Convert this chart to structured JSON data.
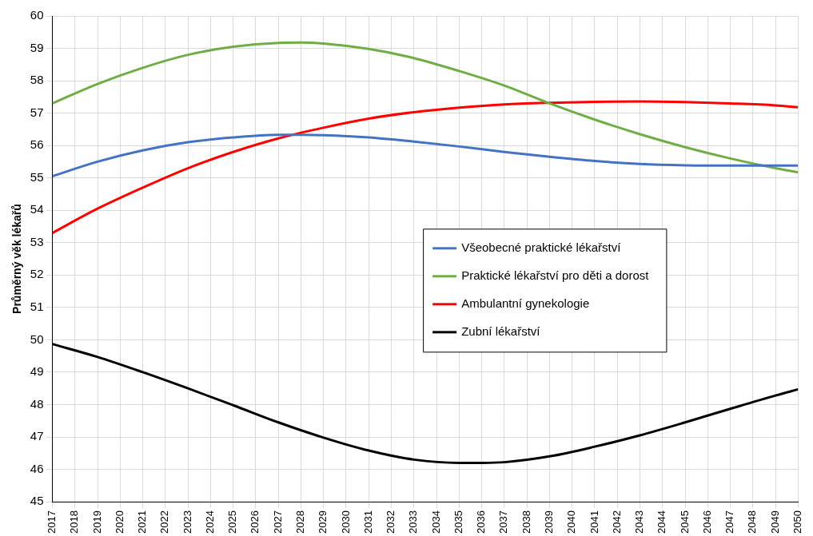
{
  "chart_data": {
    "type": "line",
    "ylabel": "Průměrný věk lékařů",
    "xlim": [
      2017,
      2050
    ],
    "xticks": [
      2017,
      2018,
      2019,
      2020,
      2021,
      2022,
      2023,
      2024,
      2025,
      2026,
      2027,
      2028,
      2029,
      2030,
      2031,
      2032,
      2033,
      2034,
      2035,
      2036,
      2037,
      2038,
      2039,
      2040,
      2041,
      2042,
      2043,
      2044,
      2045,
      2046,
      2047,
      2048,
      2049,
      2050
    ],
    "ylim": [
      45,
      60
    ],
    "yticks": [
      45,
      46,
      47,
      48,
      49,
      50,
      51,
      52,
      53,
      54,
      55,
      56,
      57,
      58,
      59,
      60
    ],
    "grid": true,
    "legend": "right",
    "marker": "none",
    "line_style": "solid",
    "series": [
      {
        "name": "Všeobecné praktické lékařství",
        "color": "#4472c4",
        "x": [
          2017,
          2019,
          2021,
          2023,
          2025,
          2027,
          2028,
          2029,
          2031,
          2033,
          2035,
          2037,
          2039,
          2041,
          2043,
          2045,
          2047,
          2050
        ],
        "values": [
          55.05,
          55.5,
          55.85,
          56.1,
          56.25,
          56.33,
          56.33,
          56.32,
          56.25,
          56.12,
          55.97,
          55.8,
          55.65,
          55.52,
          55.43,
          55.39,
          55.38,
          55.38
        ]
      },
      {
        "name": "Praktické lékařství pro děti a dorost",
        "color": "#70ad47",
        "x": [
          2017,
          2019,
          2021,
          2023,
          2025,
          2027,
          2028,
          2029,
          2031,
          2033,
          2035,
          2037,
          2039,
          2041,
          2043,
          2045,
          2047,
          2049,
          2050
        ],
        "values": [
          57.3,
          57.9,
          58.4,
          58.8,
          59.05,
          59.17,
          59.18,
          59.15,
          58.98,
          58.7,
          58.3,
          57.85,
          57.3,
          56.8,
          56.35,
          55.95,
          55.6,
          55.3,
          55.17
        ]
      },
      {
        "name": "Ambulantní gynekologie",
        "color": "#ff0000",
        "x": [
          2017,
          2019,
          2021,
          2023,
          2025,
          2027,
          2029,
          2031,
          2033,
          2035,
          2037,
          2039,
          2041,
          2043,
          2045,
          2047,
          2049,
          2050
        ],
        "values": [
          53.3,
          54.05,
          54.7,
          55.3,
          55.8,
          56.22,
          56.55,
          56.83,
          57.03,
          57.17,
          57.27,
          57.32,
          57.35,
          57.36,
          57.34,
          57.3,
          57.24,
          57.18
        ]
      },
      {
        "name": "Zubní lékařství",
        "color": "#000000",
        "x": [
          2017,
          2019,
          2021,
          2023,
          2025,
          2027,
          2029,
          2031,
          2033,
          2035,
          2036,
          2037,
          2039,
          2041,
          2043,
          2045,
          2047,
          2049,
          2050
        ],
        "values": [
          49.87,
          49.47,
          49.0,
          48.5,
          47.98,
          47.45,
          46.98,
          46.58,
          46.3,
          46.2,
          46.2,
          46.22,
          46.4,
          46.7,
          47.05,
          47.45,
          47.87,
          48.28,
          48.47
        ]
      }
    ]
  }
}
